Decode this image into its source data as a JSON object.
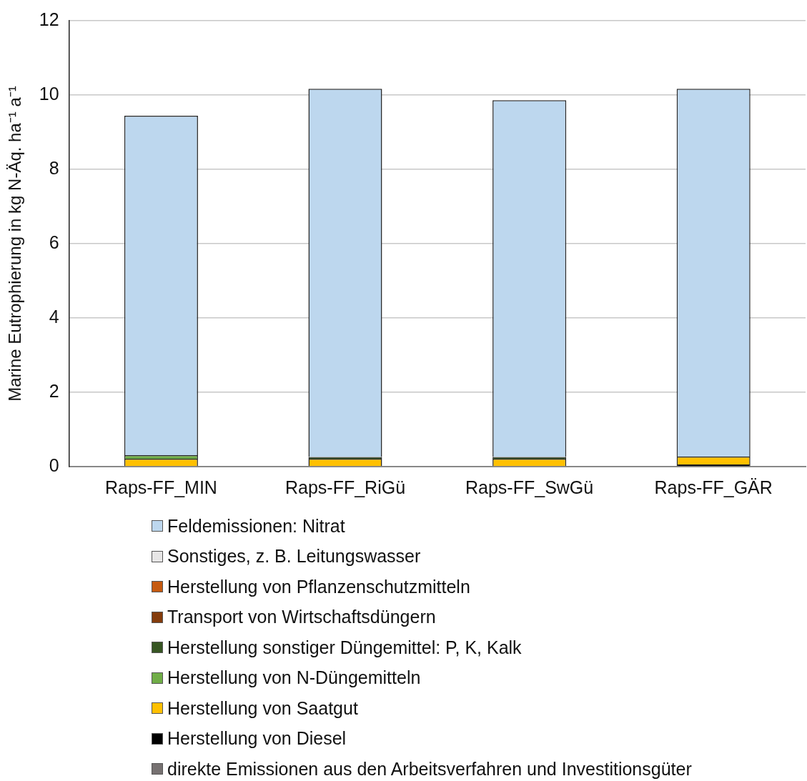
{
  "chart_data": {
    "type": "bar",
    "ylabel": "Marine Eutrophierung in kg N-Äq. ha⁻¹ a⁻¹",
    "categories": [
      "Raps-FF_MIN",
      "Raps-FF_RiGü",
      "Raps-FF_SwGü",
      "Raps-FF_GÄR"
    ],
    "stacked": true,
    "ylim": [
      0,
      12
    ],
    "yticks": [
      0,
      2,
      4,
      6,
      8,
      10,
      12
    ],
    "grid": "y",
    "legend": "bottom",
    "series": [
      {
        "name": "direkte Emissionen aus den Arbeitsverfahren und Investitionsgüter",
        "color": "#767171",
        "values": [
          0,
          0,
          0,
          0
        ]
      },
      {
        "name": "Herstellung von Diesel",
        "color": "#000000",
        "values": [
          0,
          0,
          0,
          0.06
        ]
      },
      {
        "name": "Herstellung von Saatgut",
        "color": "#ffc000",
        "values": [
          0.21,
          0.21,
          0.21,
          0.21
        ]
      },
      {
        "name": "Herstellung von N-Düngemitteln",
        "color": "#70ad47",
        "values": [
          0.1,
          0,
          0,
          0
        ]
      },
      {
        "name": "Herstellung sonstiger Düngemittel: P, K, Kalk",
        "color": "#375623",
        "values": [
          0,
          0.05,
          0.05,
          0
        ]
      },
      {
        "name": "Transport von Wirtschaftsdüngern",
        "color": "#843c0c",
        "values": [
          0,
          0,
          0,
          0
        ]
      },
      {
        "name": "Herstellung von Pflanzenschutzmitteln",
        "color": "#c55a11",
        "values": [
          0,
          0,
          0,
          0
        ]
      },
      {
        "name": "Sonstiges, z. B. Leitungswasser",
        "color": "#e7e6e6",
        "values": [
          0,
          0,
          0,
          0
        ]
      },
      {
        "name": "Feldemissionen: Nitrat",
        "color": "#bdd7ee",
        "values": [
          9.13,
          9.91,
          9.6,
          9.9
        ]
      }
    ]
  }
}
